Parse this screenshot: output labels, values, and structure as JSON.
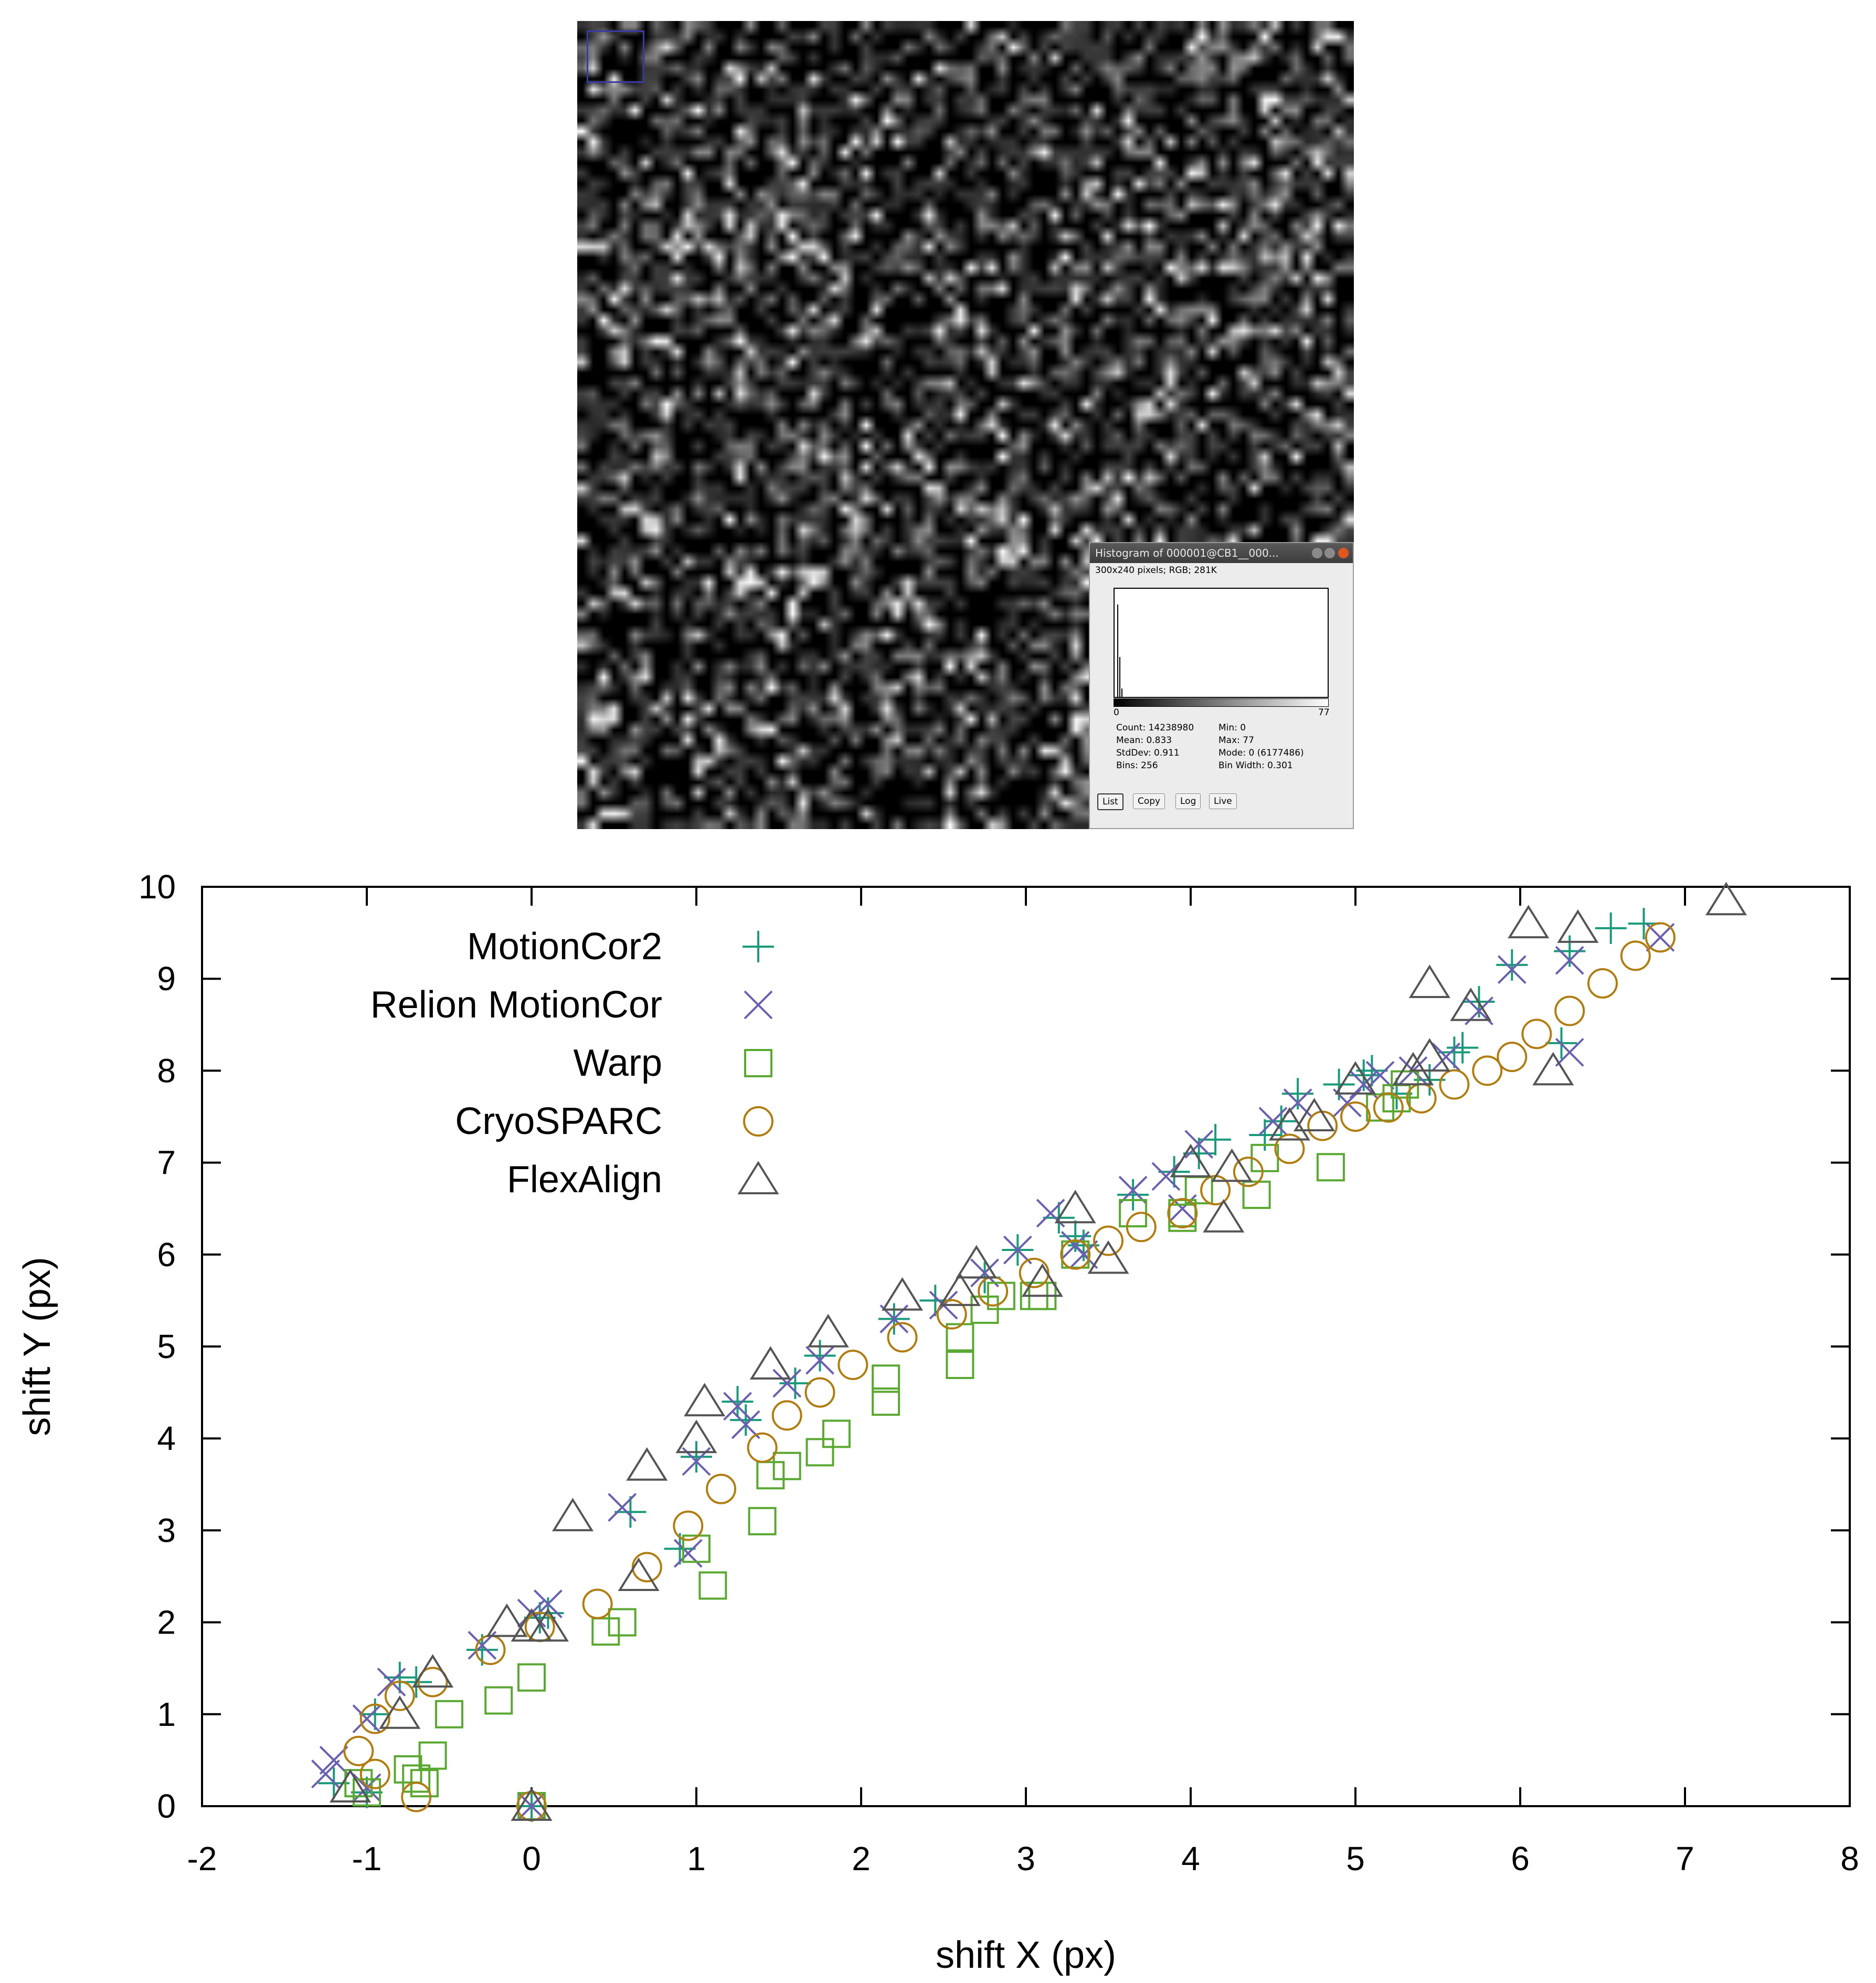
{
  "histogram_window": {
    "title": "Histogram of 000001@CB1__000...",
    "info": "300x240 pixels; RGB; 281K",
    "axis_min": "0",
    "axis_max": "77",
    "stats": {
      "count": "Count: 14238980",
      "mean": "Mean: 0.833",
      "stddev": "StdDev: 0.911",
      "bins": "Bins: 256",
      "min": "Min: 0",
      "max": "Max: 77",
      "mode": "Mode: 0 (6177486)",
      "bin_width": "Bin Width: 0.301"
    },
    "buttons": {
      "list": "List",
      "copy": "Copy",
      "log": "Log",
      "live": "Live"
    }
  },
  "chart_data": {
    "type": "scatter",
    "xlabel": "shift X (px)",
    "ylabel": "shift Y (px)",
    "xlim": [
      -2,
      8
    ],
    "ylim": [
      0,
      10
    ],
    "xticks": [
      "-2",
      "-1",
      "0",
      "1",
      "2",
      "3",
      "4",
      "5",
      "6",
      "7",
      "8"
    ],
    "yticks": [
      "0",
      "1",
      "2",
      "3",
      "4",
      "5",
      "6",
      "7",
      "8",
      "9",
      "10"
    ],
    "grid": false,
    "legend_position": "top-left",
    "series": [
      {
        "name": "MotionCor2",
        "marker": "plus",
        "color": "#1a9a7a",
        "points": [
          [
            0,
            0
          ],
          [
            -1.2,
            0.25
          ],
          [
            -1.0,
            0.15
          ],
          [
            -0.95,
            1.0
          ],
          [
            -0.8,
            1.4
          ],
          [
            -0.7,
            1.35
          ],
          [
            -0.3,
            1.7
          ],
          [
            0.05,
            2.05
          ],
          [
            0.1,
            2.1
          ],
          [
            0.6,
            3.2
          ],
          [
            0.9,
            2.8
          ],
          [
            1.0,
            3.8
          ],
          [
            1.25,
            4.4
          ],
          [
            1.3,
            4.2
          ],
          [
            1.6,
            4.6
          ],
          [
            1.75,
            4.9
          ],
          [
            2.2,
            5.3
          ],
          [
            2.45,
            5.5
          ],
          [
            2.75,
            5.75
          ],
          [
            2.95,
            6.05
          ],
          [
            3.2,
            6.4
          ],
          [
            3.35,
            6.1
          ],
          [
            3.3,
            6.2
          ],
          [
            3.65,
            6.65
          ],
          [
            3.9,
            6.9
          ],
          [
            4.05,
            7.1
          ],
          [
            4.15,
            7.25
          ],
          [
            4.45,
            7.3
          ],
          [
            4.55,
            7.45
          ],
          [
            4.65,
            7.75
          ],
          [
            4.9,
            7.85
          ],
          [
            5.05,
            7.95
          ],
          [
            5.1,
            8.0
          ],
          [
            5.25,
            7.75
          ],
          [
            5.45,
            7.9
          ],
          [
            5.6,
            8.2
          ],
          [
            5.65,
            8.25
          ],
          [
            5.75,
            8.75
          ],
          [
            5.95,
            9.15
          ],
          [
            6.25,
            8.3
          ],
          [
            6.3,
            9.3
          ],
          [
            6.55,
            9.55
          ],
          [
            6.75,
            9.6
          ]
        ]
      },
      {
        "name": "Relion MotionCor",
        "marker": "cross",
        "color": "#6a5fb0",
        "points": [
          [
            0,
            0
          ],
          [
            -1.25,
            0.35
          ],
          [
            -1.2,
            0.5
          ],
          [
            -1.0,
            0.2
          ],
          [
            -1.0,
            0.95
          ],
          [
            -0.85,
            1.35
          ],
          [
            -0.3,
            1.75
          ],
          [
            0.0,
            2.1
          ],
          [
            0.1,
            2.2
          ],
          [
            0.55,
            3.25
          ],
          [
            0.95,
            2.75
          ],
          [
            1.0,
            3.75
          ],
          [
            1.25,
            4.35
          ],
          [
            1.3,
            4.15
          ],
          [
            1.55,
            4.6
          ],
          [
            1.75,
            4.85
          ],
          [
            2.2,
            5.3
          ],
          [
            2.5,
            5.45
          ],
          [
            2.75,
            5.8
          ],
          [
            2.95,
            6.05
          ],
          [
            3.15,
            6.45
          ],
          [
            3.3,
            6.1
          ],
          [
            3.35,
            6.0
          ],
          [
            3.65,
            6.7
          ],
          [
            3.85,
            6.85
          ],
          [
            3.95,
            6.5
          ],
          [
            4.05,
            7.2
          ],
          [
            4.5,
            7.45
          ],
          [
            4.65,
            7.65
          ],
          [
            4.95,
            7.65
          ],
          [
            5.05,
            7.85
          ],
          [
            5.15,
            7.95
          ],
          [
            5.35,
            8.0
          ],
          [
            5.55,
            8.15
          ],
          [
            5.75,
            8.65
          ],
          [
            5.95,
            9.1
          ],
          [
            6.3,
            8.2
          ],
          [
            6.3,
            9.2
          ],
          [
            6.85,
            9.45
          ]
        ]
      },
      {
        "name": "Warp",
        "marker": "square",
        "color": "#5aa832",
        "points": [
          [
            0,
            0
          ],
          [
            -1.05,
            0.25
          ],
          [
            -1.0,
            0.15
          ],
          [
            -0.75,
            0.4
          ],
          [
            -0.7,
            0.3
          ],
          [
            -0.65,
            0.25
          ],
          [
            -0.6,
            0.55
          ],
          [
            -0.5,
            1.0
          ],
          [
            -0.2,
            1.15
          ],
          [
            0.0,
            1.4
          ],
          [
            0.45,
            1.9
          ],
          [
            0.55,
            2.0
          ],
          [
            1.0,
            2.8
          ],
          [
            1.1,
            2.4
          ],
          [
            1.4,
            3.1
          ],
          [
            1.45,
            3.6
          ],
          [
            1.55,
            3.7
          ],
          [
            1.75,
            3.85
          ],
          [
            1.85,
            4.05
          ],
          [
            2.15,
            4.4
          ],
          [
            2.15,
            4.65
          ],
          [
            2.6,
            4.8
          ],
          [
            2.6,
            5.1
          ],
          [
            2.75,
            5.4
          ],
          [
            2.85,
            5.55
          ],
          [
            3.05,
            5.55
          ],
          [
            3.1,
            5.55
          ],
          [
            3.3,
            6.0
          ],
          [
            3.65,
            6.45
          ],
          [
            3.95,
            6.45
          ],
          [
            3.95,
            6.4
          ],
          [
            4.05,
            6.7
          ],
          [
            4.4,
            6.65
          ],
          [
            4.45,
            7.05
          ],
          [
            4.85,
            6.95
          ],
          [
            5.15,
            7.6
          ],
          [
            5.25,
            7.7
          ],
          [
            5.3,
            7.85
          ]
        ]
      },
      {
        "name": "CryoSPARC",
        "marker": "circle",
        "color": "#b07d12",
        "points": [
          [
            0,
            0
          ],
          [
            -1.05,
            0.6
          ],
          [
            -0.95,
            0.35
          ],
          [
            -0.95,
            0.95
          ],
          [
            -0.8,
            1.2
          ],
          [
            -0.7,
            0.1
          ],
          [
            -0.6,
            1.35
          ],
          [
            -0.25,
            1.7
          ],
          [
            0.05,
            1.95
          ],
          [
            0.4,
            2.2
          ],
          [
            0.7,
            2.6
          ],
          [
            0.95,
            3.05
          ],
          [
            1.15,
            3.45
          ],
          [
            1.4,
            3.9
          ],
          [
            1.55,
            4.25
          ],
          [
            1.75,
            4.5
          ],
          [
            1.95,
            4.8
          ],
          [
            2.25,
            5.1
          ],
          [
            2.55,
            5.35
          ],
          [
            2.8,
            5.6
          ],
          [
            3.05,
            5.8
          ],
          [
            3.3,
            6.0
          ],
          [
            3.5,
            6.15
          ],
          [
            3.7,
            6.3
          ],
          [
            3.95,
            6.45
          ],
          [
            4.15,
            6.7
          ],
          [
            4.35,
            6.9
          ],
          [
            4.6,
            7.15
          ],
          [
            4.8,
            7.4
          ],
          [
            5.0,
            7.5
          ],
          [
            5.2,
            7.6
          ],
          [
            5.4,
            7.7
          ],
          [
            5.6,
            7.85
          ],
          [
            5.8,
            8.0
          ],
          [
            5.95,
            8.15
          ],
          [
            6.1,
            8.4
          ],
          [
            6.3,
            8.65
          ],
          [
            6.5,
            8.95
          ],
          [
            6.7,
            9.25
          ],
          [
            6.85,
            9.45
          ]
        ]
      },
      {
        "name": "FlexAlign",
        "marker": "triangle",
        "color": "#555555",
        "points": [
          [
            0,
            0
          ],
          [
            -1.1,
            0.2
          ],
          [
            -0.8,
            1.0
          ],
          [
            -0.6,
            1.45
          ],
          [
            -0.15,
            2.0
          ],
          [
            0.0,
            1.95
          ],
          [
            0.1,
            1.95
          ],
          [
            0.25,
            3.15
          ],
          [
            0.65,
            2.5
          ],
          [
            0.7,
            3.7
          ],
          [
            1.0,
            4.0
          ],
          [
            1.05,
            4.4
          ],
          [
            1.45,
            4.8
          ],
          [
            1.8,
            5.15
          ],
          [
            2.25,
            5.55
          ],
          [
            2.6,
            5.6
          ],
          [
            2.7,
            5.9
          ],
          [
            3.1,
            5.7
          ],
          [
            3.3,
            6.5
          ],
          [
            3.5,
            5.95
          ],
          [
            4.0,
            7.0
          ],
          [
            4.2,
            6.4
          ],
          [
            4.25,
            6.95
          ],
          [
            4.6,
            7.4
          ],
          [
            4.75,
            7.5
          ],
          [
            5.0,
            7.9
          ],
          [
            5.35,
            8.0
          ],
          [
            5.45,
            8.15
          ],
          [
            5.45,
            8.95
          ],
          [
            5.7,
            8.7
          ],
          [
            6.05,
            9.6
          ],
          [
            6.2,
            8.0
          ],
          [
            6.35,
            9.55
          ],
          [
            7.25,
            9.85
          ]
        ]
      }
    ]
  }
}
